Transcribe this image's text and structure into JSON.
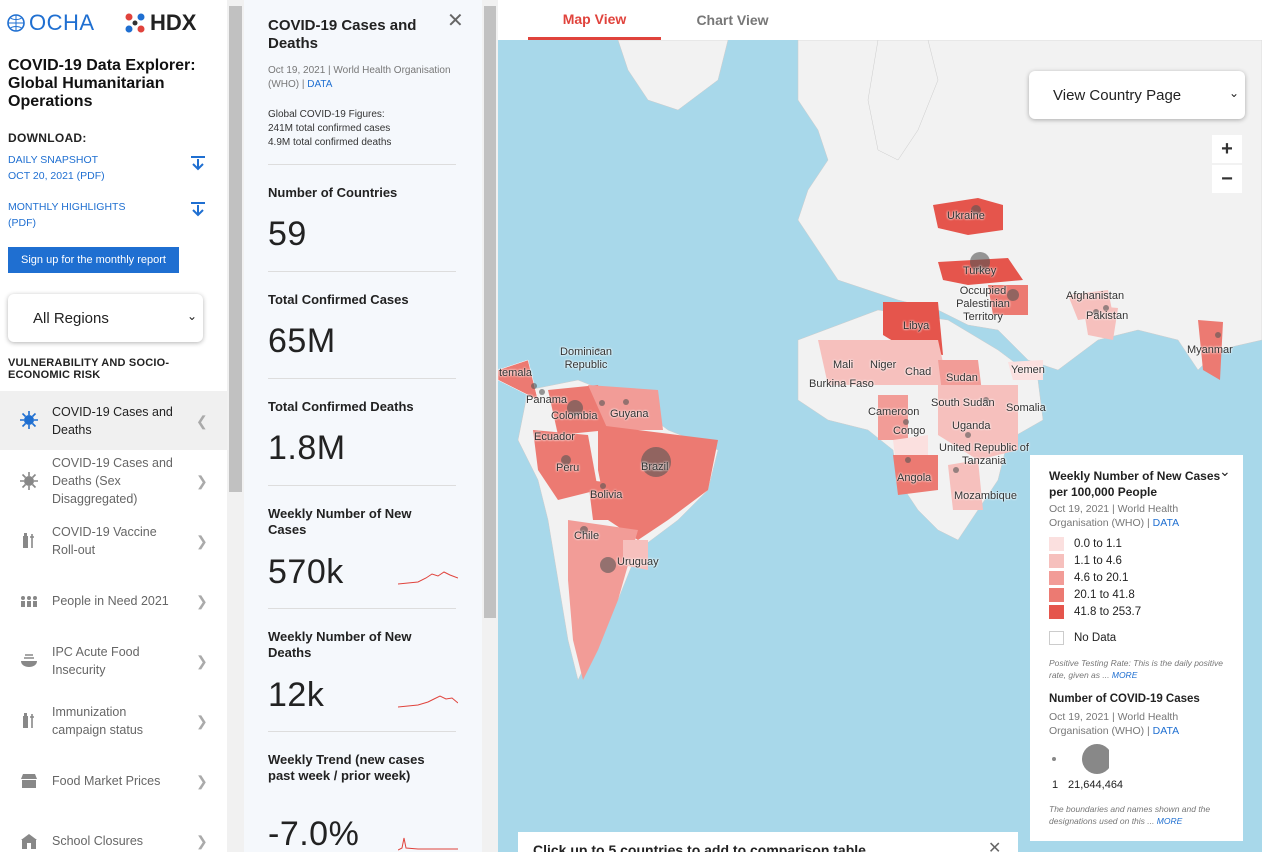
{
  "brand": {
    "ocha": "OCHA",
    "hdx": "HDX"
  },
  "sidebar": {
    "title": "COVID-19 Data Explorer: Global Humanitarian Operations",
    "download_heading": "DOWNLOAD:",
    "downloads": [
      {
        "line1": "DAILY SNAPSHOT",
        "line2": "OCT 20, 2021 (PDF)"
      },
      {
        "line1": "MONTHLY HIGHLIGHTS",
        "line2": "(PDF)"
      }
    ],
    "signup_label": "Sign up for the monthly report",
    "region_select": "All Regions",
    "section_heading": "VULNERABILITY AND SOCIO-ECONOMIC RISK",
    "menu": [
      {
        "label": "COVID-19 Cases and Deaths",
        "icon": "virus-icon",
        "active": true
      },
      {
        "label": "COVID-19 Cases and Deaths (Sex Disaggregated)",
        "icon": "virus-icon"
      },
      {
        "label": "COVID-19 Vaccine Roll-out",
        "icon": "vaccine-icon"
      },
      {
        "label": "People in Need 2021",
        "icon": "people-icon"
      },
      {
        "label": "IPC Acute Food Insecurity",
        "icon": "food-bowl-icon"
      },
      {
        "label": "Immunization campaign status",
        "icon": "syringe-icon"
      },
      {
        "label": "Food Market Prices",
        "icon": "market-icon"
      },
      {
        "label": "School Closures",
        "icon": "school-icon"
      }
    ]
  },
  "panel": {
    "title": "COVID-19 Cases and Deaths",
    "source": "Oct 19, 2021 | World Health Organisation (WHO) |",
    "source_link": "DATA",
    "global_heading": "Global COVID-19 Figures:",
    "global_cases": "241M total confirmed cases",
    "global_deaths": "4.9M total confirmed deaths",
    "stats": [
      {
        "label": "Number of Countries",
        "value": "59"
      },
      {
        "label": "Total Confirmed Cases",
        "value": "65M"
      },
      {
        "label": "Total Confirmed Deaths",
        "value": "1.8M"
      },
      {
        "label": "Weekly Number of New Cases",
        "value": "570k"
      },
      {
        "label": "Weekly Number of New Deaths",
        "value": "12k"
      },
      {
        "label": "Weekly Trend (new cases past week / prior week)",
        "value": "-7.0%"
      }
    ]
  },
  "tabs": [
    {
      "label": "Map View",
      "active": true
    },
    {
      "label": "Chart View",
      "active": false
    }
  ],
  "map": {
    "view_country_select": "View Country Page",
    "zoom_in": "+",
    "zoom_out": "−",
    "labels": [
      "Ukraine",
      "Turkey",
      "Occupied Palestinian Territory",
      "Afghanistan",
      "Pakistan",
      "Libya",
      "Myanmar",
      "Yemen",
      "Mali",
      "Niger",
      "Chad",
      "Sudan",
      "Burkina Faso",
      "Cameroon",
      "South Sudan",
      "Somalia",
      "Congo",
      "Uganda",
      "United Republic of Tanzania",
      "Angola",
      "Mozambique",
      "Dominican Republic",
      "Colombia",
      "Guyana",
      "Panama",
      "Ecuador",
      "Peru",
      "Brazil",
      "Bolivia",
      "Chile",
      "Uruguay",
      "temala"
    ],
    "bottom_bar": "Click up to 5 countries to add to comparison table"
  },
  "legend": {
    "title": "Weekly Number of New Cases per 100,000 People",
    "source": "Oct 19, 2021 | World Health Organisation (WHO) |",
    "source_link": "DATA",
    "bins": [
      {
        "label": "0.0 to 1.1",
        "color": "#fbe0df"
      },
      {
        "label": "1.1 to 4.6",
        "color": "#f6c0bd"
      },
      {
        "label": "4.6 to 20.1",
        "color": "#f29c97"
      },
      {
        "label": "20.1 to 41.8",
        "color": "#ec7a72"
      },
      {
        "label": "41.8 to 253.7",
        "color": "#e5554c"
      }
    ],
    "no_data": "No Data",
    "testing_note": "Positive Testing Rate: This is the daily positive rate, given as ...",
    "more": "MORE",
    "cases_title": "Number of COVID-19 Cases",
    "cases_min": "1",
    "cases_max": "21,644,464",
    "boundaries_note": "The boundaries and names shown and the designations used on this ..."
  },
  "colors": {
    "accent_red": "#e0433c",
    "link_blue": "#1f6fd1",
    "ocean": "#a8d8ea",
    "land": "#f2f2f2"
  }
}
